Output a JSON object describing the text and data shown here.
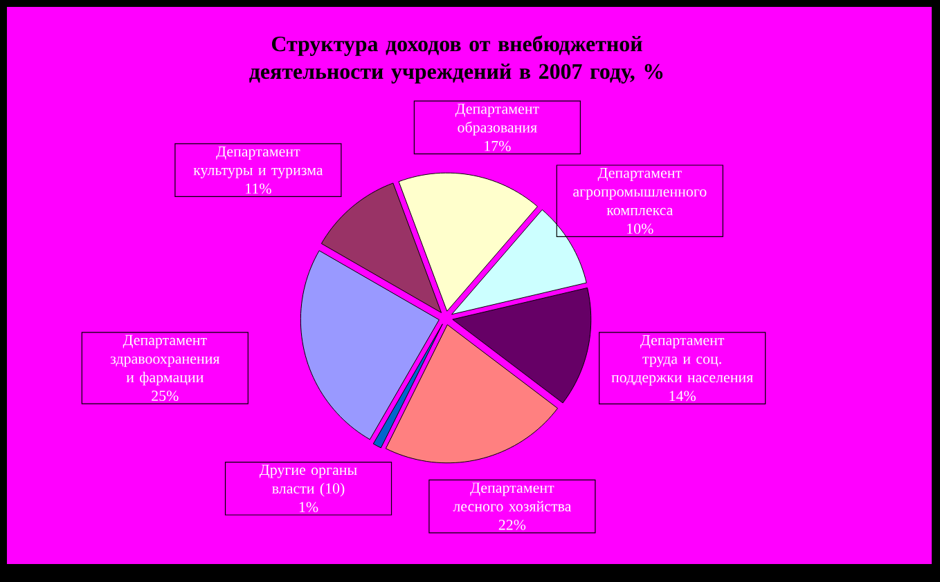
{
  "chart_data": {
    "type": "pie",
    "title": "Структура доходов от внебюджетной деятельности учреждений в 2007 году, %",
    "categories": [
      "Департамент здравоохранения и фармации",
      "Департамент культуры и туризма",
      "Департамент образования",
      "Департамент агропромышленного комплекса",
      "Департамент труда и соц. поддержки населения",
      "Департамент лесного хозяйства",
      "Другие органы власти (10)"
    ],
    "values": [
      25,
      11,
      17,
      10,
      14,
      22,
      1
    ],
    "colors": [
      "#9999ff",
      "#993366",
      "#ffffcc",
      "#ccffff",
      "#660066",
      "#ff8080",
      "#0066cc"
    ],
    "value_labels": [
      "25%",
      "11%",
      "17%",
      "10%",
      "14%",
      "22%",
      "1%"
    ]
  }
}
